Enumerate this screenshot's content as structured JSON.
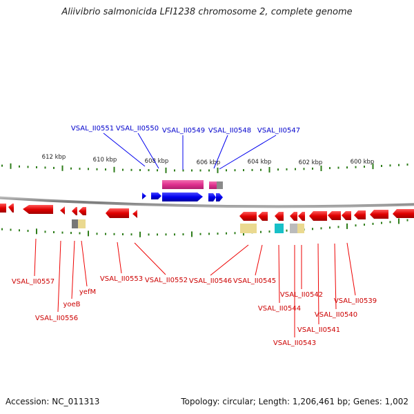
{
  "title": "Aliivibrio salmonicida LFI1238 chromosome 2, complete genome",
  "footer": {
    "accession": "Accession: NC_011313",
    "summary": "Topology: circular; Length: 1,206,461 bp; Genes: 1,002"
  },
  "colors": {
    "forward_gene": "#0000ee",
    "reverse_gene": "#ee0000",
    "forward_label": "#0000cc",
    "reverse_label": "#cc0000",
    "tick": "#2e7d1a",
    "backbone": "#777777",
    "rna_pink": "#e0308f",
    "feature_grey": "#888888",
    "feature_yellow": "#e8d890",
    "feature_cyan": "#18c0c8"
  },
  "scale_labels": [
    "612 kbp",
    "610 kbp",
    "608 kbp",
    "606 kbp",
    "604 kbp",
    "602 kbp",
    "600 kbp"
  ],
  "forward_genes": [
    "VSAL_II0551",
    "VSAL_II0550",
    "VSAL_II0549",
    "VSAL_II0548",
    "VSAL_II0547"
  ],
  "reverse_genes": [
    "VSAL_II0557",
    "VSAL_II0556",
    "yoeB",
    "yefM",
    "VSAL_II0553",
    "VSAL_II0552",
    "VSAL_II0546",
    "VSAL_II0545",
    "VSAL_II0544",
    "VSAL_II0543",
    "VSAL_II0542",
    "VSAL_II0541",
    "VSAL_II0540",
    "VSAL_II0539"
  ]
}
